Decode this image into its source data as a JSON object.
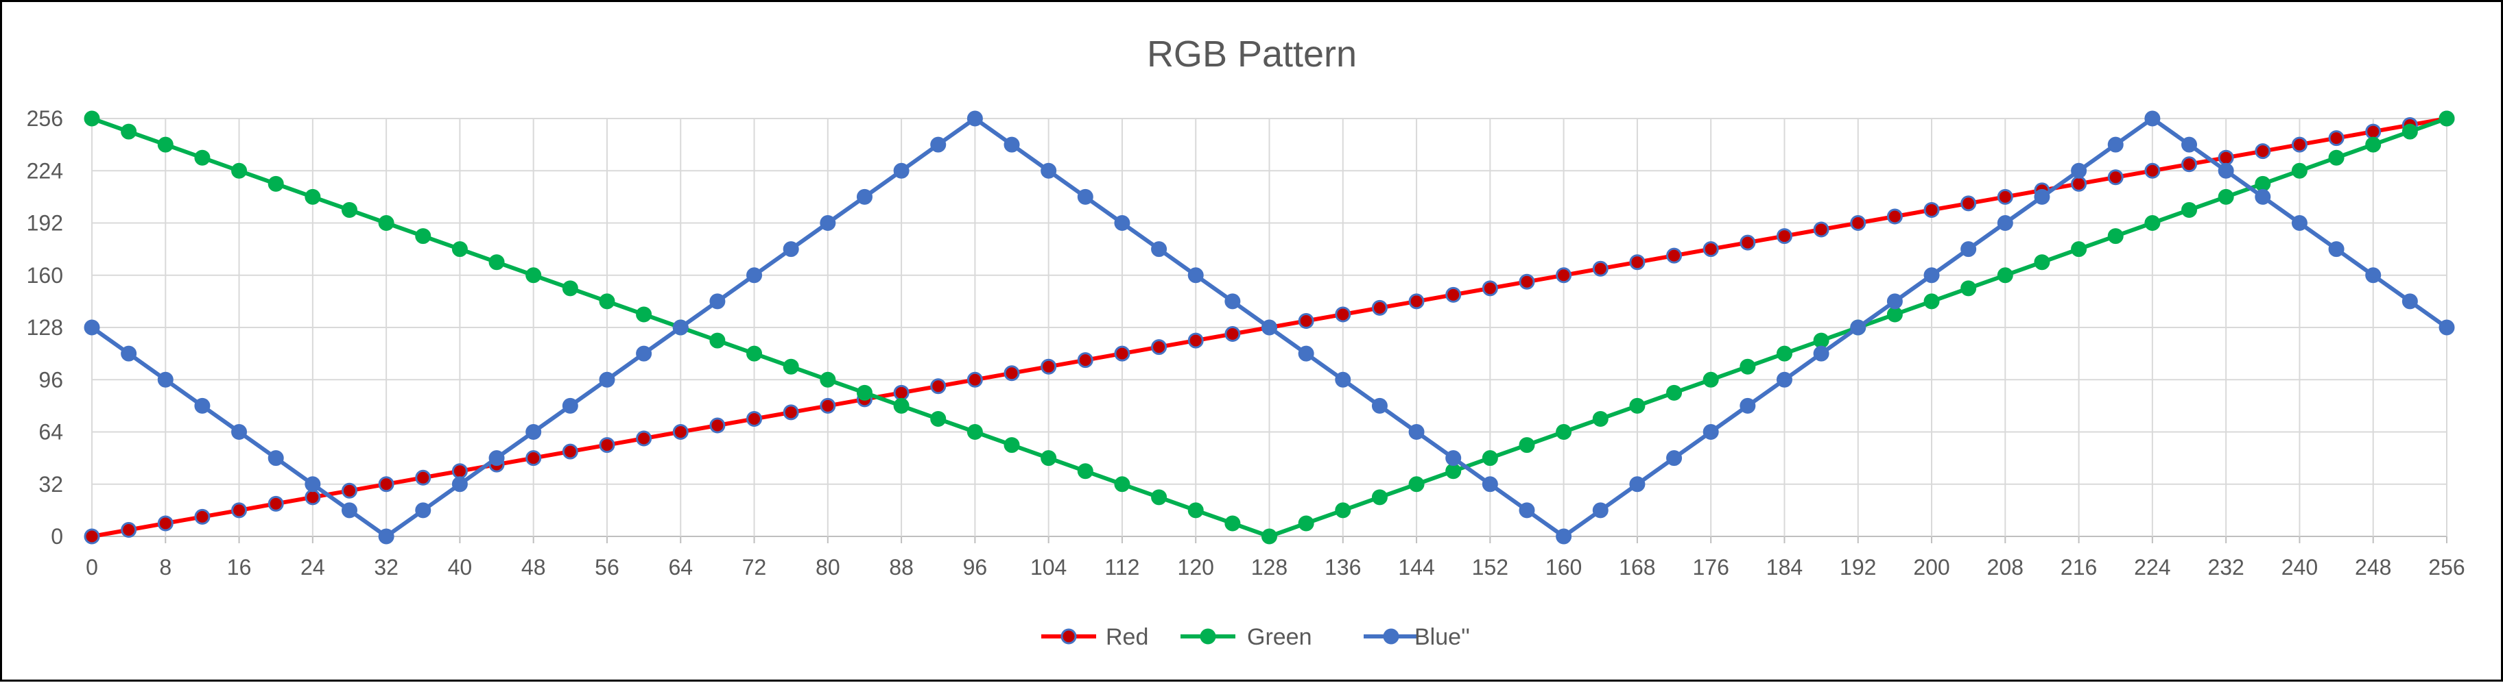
{
  "chart_data": {
    "type": "line",
    "title": "RGB Pattern",
    "xlabel": "",
    "ylabel": "",
    "xlim": [
      0,
      256
    ],
    "ylim": [
      0,
      256
    ],
    "x_ticks": [
      0,
      8,
      16,
      24,
      32,
      40,
      48,
      56,
      64,
      72,
      80,
      88,
      96,
      104,
      112,
      120,
      128,
      136,
      144,
      152,
      160,
      168,
      176,
      184,
      192,
      200,
      208,
      216,
      224,
      232,
      240,
      248,
      256
    ],
    "y_ticks": [
      0,
      32,
      64,
      96,
      128,
      160,
      192,
      224,
      256
    ],
    "grid": true,
    "legend_position": "bottom",
    "x": [
      0,
      4,
      8,
      12,
      16,
      20,
      24,
      28,
      32,
      36,
      40,
      44,
      48,
      52,
      56,
      60,
      64,
      68,
      72,
      76,
      80,
      84,
      88,
      92,
      96,
      100,
      104,
      108,
      112,
      116,
      120,
      124,
      128,
      132,
      136,
      140,
      144,
      148,
      152,
      156,
      160,
      164,
      168,
      172,
      176,
      180,
      184,
      188,
      192,
      196,
      200,
      204,
      208,
      212,
      216,
      220,
      224,
      228,
      232,
      236,
      240,
      244,
      248,
      252,
      256
    ],
    "series": [
      {
        "name": "Red",
        "line_color": "#FF0000",
        "marker_fill": "#C00000",
        "marker_edge": "#4472C4",
        "values": [
          0,
          4,
          8,
          12,
          16,
          20,
          24,
          28,
          32,
          36,
          40,
          44,
          48,
          52,
          56,
          60,
          64,
          68,
          72,
          76,
          80,
          84,
          88,
          92,
          96,
          100,
          104,
          108,
          112,
          116,
          120,
          124,
          128,
          132,
          136,
          140,
          144,
          148,
          152,
          156,
          160,
          164,
          168,
          172,
          176,
          180,
          184,
          188,
          192,
          196,
          200,
          204,
          208,
          212,
          216,
          220,
          224,
          228,
          232,
          236,
          240,
          244,
          248,
          252,
          256
        ]
      },
      {
        "name": "Green",
        "line_color": "#00B050",
        "marker_fill": "#00B050",
        "marker_edge": "#00B050",
        "values": [
          256,
          248,
          240,
          232,
          224,
          216,
          208,
          200,
          192,
          184,
          176,
          168,
          160,
          152,
          144,
          136,
          128,
          120,
          112,
          104,
          96,
          88,
          80,
          72,
          64,
          56,
          48,
          40,
          32,
          24,
          16,
          8,
          0,
          8,
          16,
          24,
          32,
          40,
          48,
          56,
          64,
          72,
          80,
          88,
          96,
          104,
          112,
          120,
          128,
          136,
          144,
          152,
          160,
          168,
          176,
          184,
          192,
          200,
          208,
          216,
          224,
          232,
          240,
          248,
          256
        ]
      },
      {
        "name": "Blue''",
        "line_color": "#4472C4",
        "marker_fill": "#4472C4",
        "marker_edge": "#4472C4",
        "values": [
          128,
          112,
          96,
          80,
          64,
          48,
          32,
          16,
          0,
          16,
          32,
          48,
          64,
          80,
          96,
          112,
          128,
          144,
          160,
          176,
          192,
          208,
          224,
          240,
          256,
          240,
          224,
          208,
          192,
          176,
          160,
          144,
          128,
          112,
          96,
          80,
          64,
          48,
          32,
          16,
          0,
          16,
          32,
          48,
          64,
          80,
          96,
          112,
          128,
          144,
          160,
          176,
          192,
          208,
          224,
          240,
          256,
          240,
          224,
          208,
          192,
          176,
          160,
          144,
          128
        ]
      }
    ],
    "colors": {
      "gridline": "#D9D9D9",
      "axis": "#BFBFBF",
      "text": "#595959"
    }
  }
}
